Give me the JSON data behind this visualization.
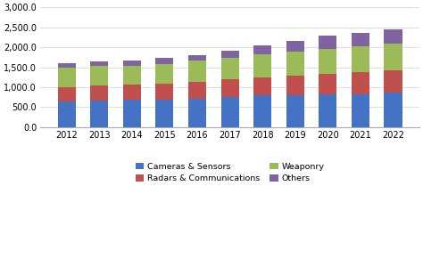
{
  "years": [
    2012,
    2013,
    2014,
    2015,
    2016,
    2017,
    2018,
    2019,
    2020,
    2021,
    2022
  ],
  "cameras_sensors": [
    650,
    660,
    680,
    680,
    720,
    760,
    790,
    800,
    815,
    830,
    855
  ],
  "radars_communications": [
    360,
    375,
    390,
    415,
    420,
    440,
    460,
    490,
    520,
    540,
    565
  ],
  "weaponry": [
    490,
    490,
    470,
    490,
    520,
    540,
    580,
    590,
    620,
    650,
    680
  ],
  "others": [
    110,
    120,
    130,
    140,
    140,
    165,
    220,
    280,
    325,
    345,
    350
  ],
  "colors": {
    "cameras_sensors": "#4472c4",
    "radars_communications": "#c0504d",
    "weaponry": "#9bbb59",
    "others": "#8064a2"
  },
  "ylim": [
    0,
    3000
  ],
  "yticks": [
    0,
    500,
    1000,
    1500,
    2000,
    2500,
    3000
  ],
  "legend": [
    "Cameras & Sensors",
    "Radars & Communications",
    "Weaponry",
    "Others"
  ],
  "background_color": "#ffffff",
  "bar_width": 0.55
}
